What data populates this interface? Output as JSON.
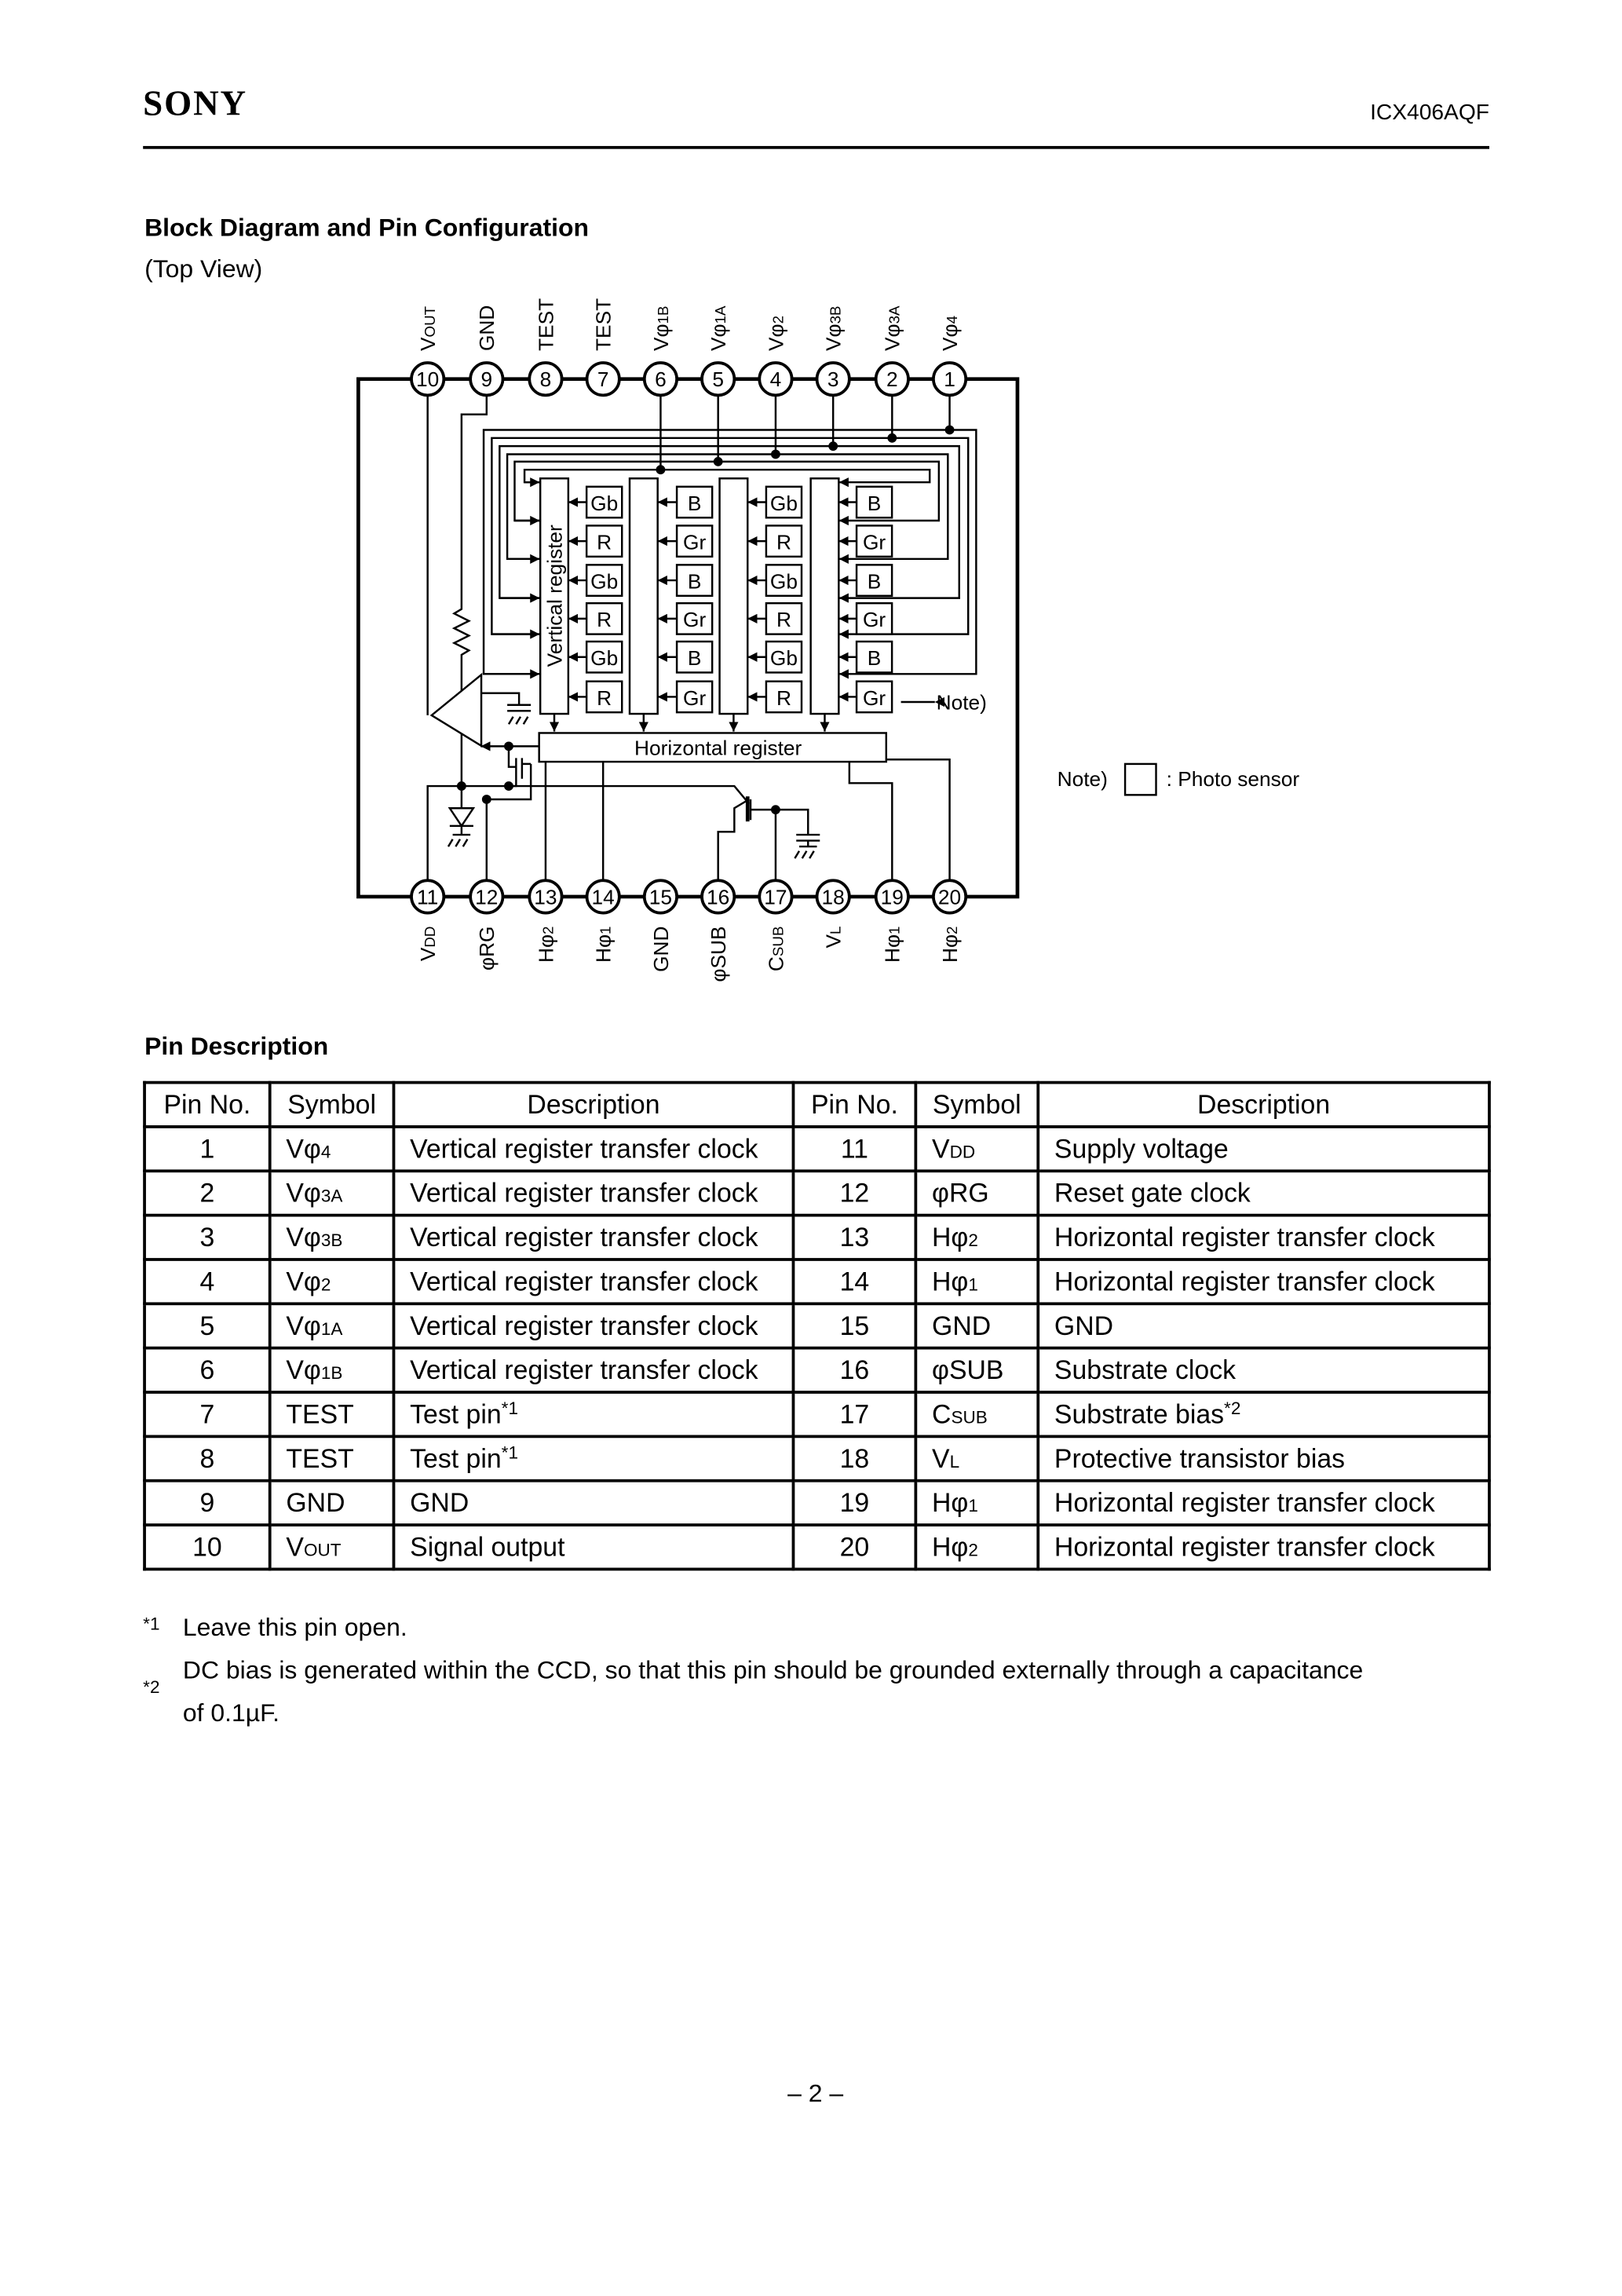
{
  "header": {
    "logo": "SONY",
    "part_number": "ICX406AQF"
  },
  "block_diagram": {
    "title": "Block Diagram and Pin Configuration",
    "subtitle": "(Top View)",
    "top_pins": [
      {
        "num": "10",
        "main": "V",
        "sub": "OUT"
      },
      {
        "num": "9",
        "main": "GND",
        "sub": ""
      },
      {
        "num": "8",
        "main": "TEST",
        "sub": ""
      },
      {
        "num": "7",
        "main": "TEST",
        "sub": ""
      },
      {
        "num": "6",
        "main": "Vφ",
        "sub": "1B"
      },
      {
        "num": "5",
        "main": "Vφ",
        "sub": "1A"
      },
      {
        "num": "4",
        "main": "Vφ",
        "sub": "2"
      },
      {
        "num": "3",
        "main": "Vφ",
        "sub": "3B"
      },
      {
        "num": "2",
        "main": "Vφ",
        "sub": "3A"
      },
      {
        "num": "1",
        "main": "Vφ",
        "sub": "4"
      }
    ],
    "bottom_pins": [
      {
        "num": "11",
        "main": "V",
        "sub": "DD"
      },
      {
        "num": "12",
        "main": "φRG",
        "sub": ""
      },
      {
        "num": "13",
        "main": "Hφ",
        "sub": "2"
      },
      {
        "num": "14",
        "main": "Hφ",
        "sub": "1"
      },
      {
        "num": "15",
        "main": "GND",
        "sub": ""
      },
      {
        "num": "16",
        "main": "φSUB",
        "sub": ""
      },
      {
        "num": "17",
        "main": "C",
        "sub": "SUB"
      },
      {
        "num": "18",
        "main": "V",
        "sub": "L"
      },
      {
        "num": "19",
        "main": "Hφ",
        "sub": "1"
      },
      {
        "num": "20",
        "main": "Hφ",
        "sub": "2"
      }
    ],
    "sensor_columns": [
      [
        "Gb",
        "R",
        "Gb",
        "R",
        "Gb",
        "R"
      ],
      [
        "B",
        "Gr",
        "B",
        "Gr",
        "B",
        "Gr"
      ],
      [
        "Gb",
        "R",
        "Gb",
        "R",
        "Gb",
        "R"
      ],
      [
        "B",
        "Gr",
        "B",
        "Gr",
        "B",
        "Gr"
      ]
    ],
    "vertical_register_label": "Vertical register",
    "horizontal_register_label": "Horizontal register",
    "note_pointer": "Note)",
    "note_legend_prefix": "Note)",
    "note_legend_text": ": Photo sensor"
  },
  "pin_description": {
    "title": "Pin Description",
    "headers": [
      "Pin No.",
      "Symbol",
      "Description",
      "Pin No.",
      "Symbol",
      "Description"
    ],
    "rows": [
      {
        "l_no": "1",
        "l_sym": "Vφ",
        "l_sub": "4",
        "l_desc": "Vertical register transfer clock",
        "l_fn": "",
        "r_no": "11",
        "r_sym": "V",
        "r_sub": "DD",
        "r_desc": "Supply voltage",
        "r_fn": ""
      },
      {
        "l_no": "2",
        "l_sym": "Vφ",
        "l_sub": "3A",
        "l_desc": "Vertical register transfer clock",
        "l_fn": "",
        "r_no": "12",
        "r_sym": "φRG",
        "r_sub": "",
        "r_desc": "Reset gate clock",
        "r_fn": ""
      },
      {
        "l_no": "3",
        "l_sym": "Vφ",
        "l_sub": "3B",
        "l_desc": "Vertical register transfer clock",
        "l_fn": "",
        "r_no": "13",
        "r_sym": "Hφ",
        "r_sub": "2",
        "r_desc": "Horizontal register transfer clock",
        "r_fn": ""
      },
      {
        "l_no": "4",
        "l_sym": "Vφ",
        "l_sub": "2",
        "l_desc": "Vertical register transfer clock",
        "l_fn": "",
        "r_no": "14",
        "r_sym": "Hφ",
        "r_sub": "1",
        "r_desc": "Horizontal register transfer clock",
        "r_fn": ""
      },
      {
        "l_no": "5",
        "l_sym": "Vφ",
        "l_sub": "1A",
        "l_desc": "Vertical register transfer clock",
        "l_fn": "",
        "r_no": "15",
        "r_sym": "GND",
        "r_sub": "",
        "r_desc": "GND",
        "r_fn": ""
      },
      {
        "l_no": "6",
        "l_sym": "Vφ",
        "l_sub": "1B",
        "l_desc": "Vertical register transfer clock",
        "l_fn": "",
        "r_no": "16",
        "r_sym": "φSUB",
        "r_sub": "",
        "r_desc": "Substrate clock",
        "r_fn": ""
      },
      {
        "l_no": "7",
        "l_sym": "TEST",
        "l_sub": "",
        "l_desc": "Test pin",
        "l_fn": "*1",
        "r_no": "17",
        "r_sym": "C",
        "r_sub": "SUB",
        "r_desc": "Substrate bias",
        "r_fn": "*2"
      },
      {
        "l_no": "8",
        "l_sym": "TEST",
        "l_sub": "",
        "l_desc": "Test pin",
        "l_fn": "*1",
        "r_no": "18",
        "r_sym": "V",
        "r_sub": "L",
        "r_desc": "Protective transistor bias",
        "r_fn": ""
      },
      {
        "l_no": "9",
        "l_sym": "GND",
        "l_sub": "",
        "l_desc": "GND",
        "l_fn": "",
        "r_no": "19",
        "r_sym": "Hφ",
        "r_sub": "1",
        "r_desc": "Horizontal register transfer clock",
        "r_fn": ""
      },
      {
        "l_no": "10",
        "l_sym": "V",
        "l_sub": "OUT",
        "l_desc": "Signal output",
        "l_fn": "",
        "r_no": "20",
        "r_sym": "Hφ",
        "r_sub": "2",
        "r_desc": "Horizontal register transfer clock",
        "r_fn": ""
      }
    ]
  },
  "footnotes": [
    {
      "mark": "*1",
      "lines": [
        "Leave this pin open."
      ]
    },
    {
      "mark": "*2",
      "lines": [
        "DC bias is generated within the CCD, so that this pin should be grounded externally through a capacitance",
        "of 0.1µF."
      ]
    }
  ],
  "page_number": "– 2 –"
}
